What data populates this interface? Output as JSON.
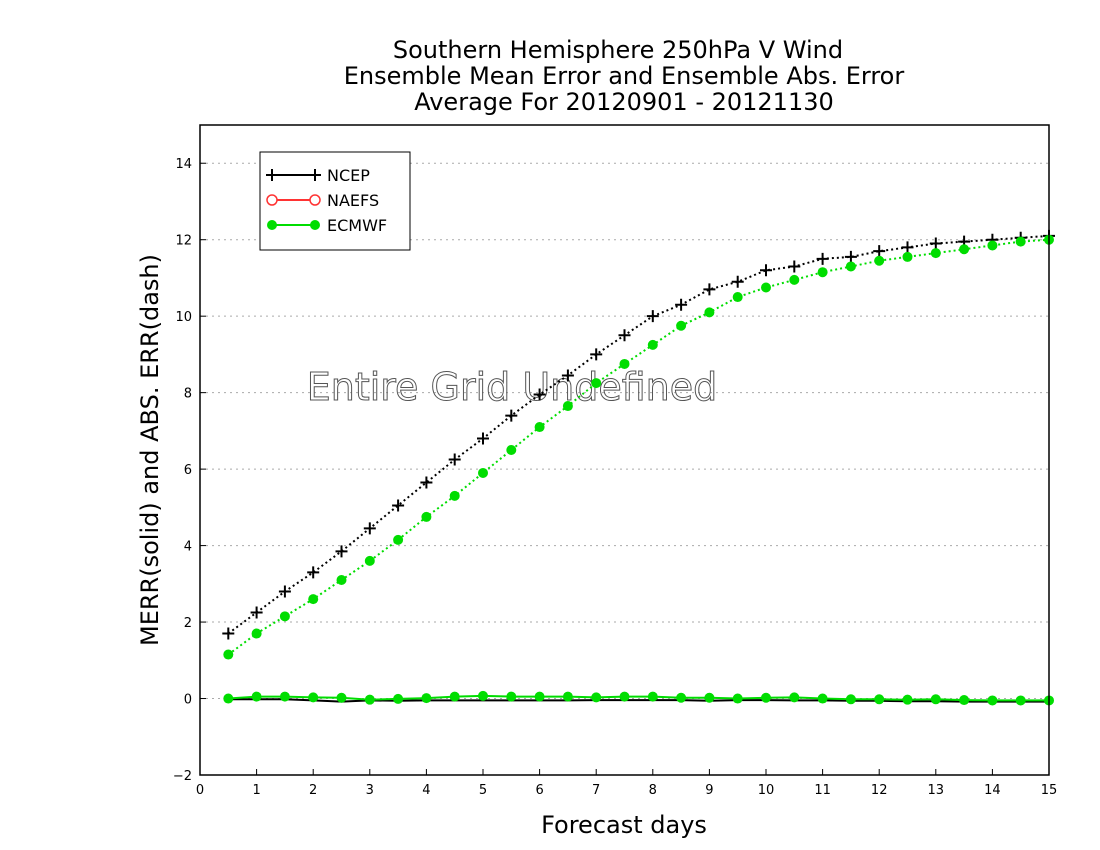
{
  "chart_data": {
    "type": "line",
    "title": [
      "Southern Hemisphere 250hPa V Wind",
      "Ensemble Mean Error and Ensemble Abs. Error",
      "Average For 20120901 - 20121130"
    ],
    "xlabel": "Forecast days",
    "ylabel": "MERR(solid) and ABS. ERR(dash)",
    "xlim": [
      0,
      15
    ],
    "ylim": [
      -2,
      15
    ],
    "xticks": [
      0,
      1,
      2,
      3,
      4,
      5,
      6,
      7,
      8,
      9,
      10,
      11,
      12,
      13,
      14,
      15
    ],
    "yticks": [
      -2,
      0,
      2,
      4,
      6,
      8,
      10,
      12,
      14
    ],
    "grid": "horizontal-dotted",
    "legend_placement": "top-left",
    "annotation": "Entire Grid Undefined",
    "x": [
      0.5,
      1,
      1.5,
      2,
      2.5,
      3,
      3.5,
      4,
      4.5,
      5,
      5.5,
      6,
      6.5,
      7,
      7.5,
      8,
      8.5,
      9,
      9.5,
      10,
      10.5,
      11,
      11.5,
      12,
      12.5,
      13,
      13.5,
      14,
      14.5,
      15
    ],
    "series": [
      {
        "name": "NCEP",
        "color": "#000000",
        "marker": "plus",
        "style": "dotted",
        "values": [
          1.7,
          2.25,
          2.8,
          3.3,
          3.85,
          4.45,
          5.05,
          5.65,
          6.25,
          6.8,
          7.4,
          7.95,
          8.45,
          9.0,
          9.5,
          10.0,
          10.3,
          10.7,
          10.9,
          11.2,
          11.3,
          11.5,
          11.55,
          11.7,
          11.8,
          11.9,
          11.95,
          12.0,
          12.05,
          12.1
        ]
      },
      {
        "name": "ECMWF",
        "color": "#00dd00",
        "marker": "dot",
        "style": "dotted",
        "values": [
          1.15,
          1.7,
          2.15,
          2.6,
          3.1,
          3.6,
          4.15,
          4.75,
          5.3,
          5.9,
          6.5,
          7.1,
          7.65,
          8.25,
          8.75,
          9.25,
          9.75,
          10.1,
          10.5,
          10.75,
          10.95,
          11.15,
          11.3,
          11.45,
          11.55,
          11.65,
          11.75,
          11.85,
          11.95,
          12.0
        ]
      },
      {
        "name": "NCEP",
        "color": "#000000",
        "marker": "none",
        "style": "solid",
        "values": [
          -0.02,
          -0.02,
          -0.02,
          -0.05,
          -0.08,
          -0.05,
          -0.06,
          -0.05,
          -0.05,
          -0.05,
          -0.05,
          -0.05,
          -0.05,
          -0.04,
          -0.04,
          -0.04,
          -0.04,
          -0.06,
          -0.04,
          -0.04,
          -0.05,
          -0.05,
          -0.06,
          -0.06,
          -0.07,
          -0.07,
          -0.08,
          -0.08,
          -0.08,
          -0.08
        ]
      },
      {
        "name": "ECMWF",
        "color": "#00dd00",
        "marker": "dot",
        "style": "solid",
        "values": [
          0.0,
          0.05,
          0.05,
          0.03,
          0.02,
          -0.03,
          -0.01,
          0.01,
          0.05,
          0.07,
          0.05,
          0.05,
          0.05,
          0.03,
          0.05,
          0.05,
          0.02,
          0.02,
          0.0,
          0.02,
          0.03,
          0.0,
          -0.02,
          -0.02,
          -0.03,
          -0.02,
          -0.04,
          -0.05,
          -0.05,
          -0.05
        ]
      }
    ],
    "legend": [
      {
        "name": "NCEP",
        "color": "#000000",
        "marker": "plus"
      },
      {
        "name": "NAEFS",
        "color": "#ff3333",
        "marker": "circle-open"
      },
      {
        "name": "ECMWF",
        "color": "#00dd00",
        "marker": "dot"
      }
    ]
  }
}
